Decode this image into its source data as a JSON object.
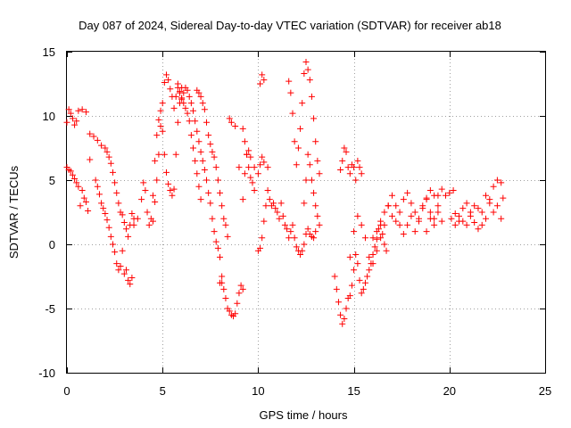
{
  "chart_data": {
    "type": "scatter",
    "title": "Day 087 of 2024, Sidereal Day-to-day VTEC variation (SDTVAR) for receiver ab18",
    "xlabel": "GPS time / hours",
    "ylabel": "SDTVAR / TECUs",
    "xlim": [
      0,
      25
    ],
    "ylim": [
      -10,
      15
    ],
    "x_ticks": [
      0,
      5,
      10,
      15,
      20,
      25
    ],
    "y_ticks": [
      -10,
      -5,
      0,
      5,
      10,
      15
    ],
    "x_tick_labels": [
      "0",
      "5",
      "10",
      "15",
      "20",
      "25"
    ],
    "y_tick_labels": [
      "-10",
      "-5",
      "0",
      "5",
      "10",
      "15"
    ],
    "grid": true,
    "legend": "none",
    "marker": "+",
    "color": "#ff0000",
    "series": [
      {
        "x": [
          0.0,
          0.1,
          0.2,
          0.3,
          0.4,
          0.5,
          0.6,
          0.8,
          1.0,
          1.2,
          1.4,
          1.6,
          1.8,
          2.0,
          2.1,
          2.2,
          2.3,
          2.4,
          2.5,
          2.6,
          2.7,
          2.8,
          2.9,
          3.0,
          3.1,
          3.2,
          3.3,
          3.4,
          3.5
        ],
        "y": [
          9.5,
          10.5,
          10.2,
          9.8,
          9.3,
          9.6,
          10.4,
          10.5,
          10.3,
          8.6,
          8.4,
          8.1,
          7.7,
          7.5,
          7.2,
          6.8,
          6.3,
          5.6,
          4.8,
          4.0,
          3.2,
          2.5,
          2.3,
          1.7,
          1.2,
          0.6,
          1.5,
          2.4,
          2.0
        ]
      },
      {
        "x": [
          0.0,
          0.1,
          0.2,
          0.3,
          0.4,
          0.5,
          0.6,
          0.7,
          0.8,
          0.9,
          1.0,
          1.1,
          1.2,
          1.5,
          1.6,
          1.7,
          1.8,
          1.9,
          2.0,
          2.1,
          2.2,
          2.3,
          2.4,
          2.5,
          2.6,
          2.7,
          2.8,
          2.9,
          3.0,
          3.1,
          3.2,
          3.3,
          3.4
        ],
        "y": [
          6.0,
          5.8,
          5.7,
          5.4,
          5.1,
          4.8,
          4.5,
          3.0,
          4.2,
          3.6,
          3.3,
          2.6,
          6.6,
          5.0,
          4.5,
          3.9,
          3.2,
          2.8,
          2.4,
          1.9,
          1.3,
          0.6,
          0.0,
          -0.6,
          -1.5,
          -2.0,
          -1.7,
          -0.5,
          -2.3,
          -2.0,
          -2.8,
          -3.1,
          -2.6
        ]
      },
      {
        "x": [
          3.5,
          3.7,
          3.9,
          4.0,
          4.1,
          4.2,
          4.3,
          4.4,
          4.5,
          4.6,
          4.7,
          4.8,
          4.9,
          5.0,
          5.1,
          5.2,
          5.3,
          5.4,
          5.5,
          5.6,
          5.7,
          5.8,
          5.9,
          6.0
        ],
        "y": [
          1.5,
          2.0,
          3.5,
          4.8,
          4.2,
          2.5,
          1.5,
          2.0,
          3.8,
          6.5,
          8.5,
          9.7,
          10.4,
          8.8,
          7.0,
          5.6,
          4.7,
          4.2,
          3.8,
          4.3,
          7.0,
          9.5,
          11.0,
          12.2
        ]
      },
      {
        "x": [
          4.5,
          4.6,
          4.7,
          4.8,
          4.9,
          5.0,
          5.1,
          5.2,
          5.3,
          5.4,
          5.5,
          5.6,
          5.7,
          5.8,
          5.9,
          6.0,
          6.1,
          6.2,
          6.3,
          6.4,
          6.5,
          6.6,
          6.7,
          6.8,
          6.9,
          7.0
        ],
        "y": [
          1.8,
          3.3,
          5.0,
          7.0,
          9.2,
          11.0,
          12.6,
          13.2,
          12.8,
          12.1,
          11.5,
          10.6,
          11.5,
          12.2,
          11.8,
          11.4,
          11.0,
          10.6,
          10.2,
          9.6,
          8.5,
          7.5,
          6.5,
          5.5,
          4.5,
          3.5
        ]
      },
      {
        "x": [
          5.8,
          5.9,
          6.0,
          6.1,
          6.2,
          6.3,
          6.4,
          6.5,
          6.6,
          6.7,
          6.8,
          6.9,
          7.0,
          7.1,
          7.2,
          7.3,
          7.4,
          7.5,
          7.6,
          7.7,
          7.8,
          7.9,
          8.0,
          8.1
        ],
        "y": [
          12.5,
          11.9,
          11.3,
          11.8,
          12.2,
          12.0,
          11.5,
          11.0,
          10.4,
          9.6,
          8.8,
          8.0,
          7.2,
          6.5,
          5.8,
          5.0,
          4.0,
          3.2,
          2.0,
          1.0,
          0.2,
          -0.3,
          -1.0,
          -3.0
        ]
      },
      {
        "x": [
          6.8,
          6.9,
          7.0,
          7.1,
          7.2,
          7.3,
          7.4,
          7.5,
          7.6,
          7.7,
          7.8,
          7.9,
          8.0,
          8.1,
          8.2,
          8.3,
          8.4
        ],
        "y": [
          12.0,
          11.8,
          11.5,
          11.0,
          10.5,
          9.5,
          8.5,
          7.8,
          7.2,
          6.8,
          6.0,
          5.0,
          4.0,
          3.0,
          2.0,
          1.5,
          0.6
        ]
      },
      {
        "x": [
          8.0,
          8.1,
          8.2,
          8.3,
          8.4,
          8.5,
          8.6,
          8.7,
          8.8,
          8.9,
          9.0,
          9.1,
          9.2
        ],
        "y": [
          -3.0,
          -2.5,
          -3.5,
          -4.2,
          -5.0,
          -5.2,
          -5.5,
          -5.6,
          -5.4,
          -4.6,
          -3.8,
          -3.2,
          -3.5
        ]
      },
      {
        "x": [
          8.5,
          8.6,
          8.8,
          9.0,
          9.2,
          9.3,
          9.4,
          9.5,
          9.6,
          9.8,
          10.0,
          10.1,
          10.2,
          10.3,
          10.5
        ],
        "y": [
          9.8,
          9.5,
          9.2,
          6.0,
          3.5,
          5.5,
          7.0,
          7.3,
          6.8,
          6.0,
          5.5,
          6.2,
          6.8,
          6.4,
          6.0
        ]
      },
      {
        "x": [
          9.2,
          9.3,
          9.4,
          9.5,
          9.6,
          9.7,
          9.8
        ],
        "y": [
          9.0,
          8.0,
          7.0,
          6.0,
          5.2,
          4.8,
          4.2
        ]
      },
      {
        "x": [
          10.0,
          10.1,
          10.2,
          10.3,
          10.4,
          10.5,
          10.6,
          10.7,
          10.8,
          10.9,
          11.0,
          11.1,
          11.2,
          11.3,
          11.4,
          11.5,
          11.6,
          11.7,
          11.8,
          11.9,
          12.0,
          12.1,
          12.2,
          12.3,
          12.4,
          12.5,
          12.6,
          12.7,
          12.8,
          12.9,
          13.0
        ],
        "y": [
          -0.5,
          -0.3,
          0.5,
          1.8,
          3.0,
          4.2,
          3.5,
          3.0,
          3.2,
          2.8,
          2.5,
          2.0,
          3.2,
          2.2,
          1.5,
          1.2,
          0.5,
          1.0,
          1.5,
          0.5,
          -0.2,
          -0.5,
          -0.8,
          -0.5,
          0.0,
          0.8,
          1.2,
          0.8,
          0.6,
          0.5,
          1.0
        ]
      },
      {
        "x": [
          10.1,
          10.2,
          10.3
        ],
        "y": [
          12.5,
          13.2,
          12.8
        ]
      },
      {
        "x": [
          11.6,
          11.7,
          11.8,
          11.9,
          12.0,
          12.1,
          12.2,
          12.3,
          12.4,
          12.5,
          12.6,
          12.7,
          12.8,
          12.9,
          13.0,
          13.1,
          13.2
        ],
        "y": [
          12.7,
          11.8,
          10.2,
          8.0,
          6.2,
          7.5,
          9.0,
          11.0,
          13.3,
          14.2,
          13.6,
          12.8,
          11.5,
          9.8,
          8.0,
          6.5,
          5.5
        ]
      },
      {
        "x": [
          12.4,
          12.5,
          12.6,
          12.7,
          12.8,
          12.9,
          13.0,
          13.1,
          13.2
        ],
        "y": [
          3.2,
          5.0,
          7.0,
          6.2,
          5.0,
          4.0,
          3.0,
          2.2,
          1.5
        ]
      },
      {
        "x": [
          14.0,
          14.1,
          14.2,
          14.3,
          14.4,
          14.5,
          14.6,
          14.7,
          14.8,
          14.9,
          15.0,
          15.1,
          15.2,
          15.3,
          15.4,
          15.5,
          15.6,
          15.7,
          15.8,
          15.9,
          16.0,
          16.1,
          16.2,
          16.3,
          16.4,
          16.5,
          16.6,
          16.7
        ],
        "y": [
          -2.5,
          -3.5,
          -4.5,
          -5.5,
          -6.2,
          -5.8,
          -5.0,
          -4.2,
          -4.0,
          -3.2,
          -2.0,
          -0.8,
          -1.5,
          -2.8,
          -3.8,
          -3.5,
          -3.0,
          -2.5,
          -2.0,
          -1.5,
          -0.8,
          -0.2,
          0.4,
          1.2,
          1.5,
          0.8,
          0.0,
          -0.5
        ]
      },
      {
        "x": [
          14.3,
          14.4,
          14.5,
          14.6,
          14.7,
          14.8,
          14.9,
          15.0,
          15.1,
          15.2,
          15.3,
          15.4
        ],
        "y": [
          5.8,
          6.5,
          7.5,
          7.2,
          6.0,
          5.5,
          6.2,
          6.0,
          5.0,
          6.5,
          6.0,
          5.5
        ]
      },
      {
        "x": [
          14.8,
          15.0,
          15.2,
          15.4,
          15.6,
          15.8,
          16.0,
          16.2,
          16.4,
          16.6,
          16.8,
          17.0,
          17.2,
          17.4,
          17.6,
          17.8,
          18.0,
          18.2,
          18.4,
          18.6,
          18.8,
          19.0,
          19.2,
          19.4,
          19.6
        ],
        "y": [
          -1.0,
          1.0,
          2.2,
          1.5,
          0.5,
          -1.0,
          0.5,
          1.0,
          1.8,
          2.5,
          3.0,
          2.2,
          1.8,
          2.5,
          3.5,
          4.0,
          3.2,
          2.5,
          2.0,
          2.8,
          3.5,
          4.2,
          3.8,
          2.5,
          1.8
        ]
      },
      {
        "x": [
          16.0,
          16.2,
          16.4,
          16.6,
          16.8,
          17.0,
          17.2,
          17.4,
          17.6,
          17.8,
          18.0,
          18.2,
          18.4,
          18.6,
          18.8,
          19.0,
          19.2,
          19.4
        ],
        "y": [
          -1.5,
          -0.5,
          0.5,
          1.5,
          3.0,
          3.8,
          3.0,
          1.5,
          0.8,
          1.5,
          2.2,
          1.0,
          1.8,
          3.0,
          3.6,
          2.5,
          2.0,
          3.0
        ]
      },
      {
        "x": [
          18.8,
          19.0,
          19.2,
          19.4,
          19.6,
          19.8,
          20.0,
          20.2
        ],
        "y": [
          1.0,
          2.0,
          1.5,
          3.8,
          4.3,
          3.8,
          4.0,
          4.2
        ]
      },
      {
        "x": [
          20.1,
          20.3,
          20.5,
          20.7,
          20.9,
          21.1,
          21.3,
          21.5,
          21.7,
          21.9,
          22.1,
          22.3,
          22.5,
          22.7,
          22.8
        ],
        "y": [
          2.0,
          2.4,
          2.2,
          1.8,
          1.5,
          2.2,
          3.0,
          2.8,
          1.5,
          2.0,
          3.5,
          4.5,
          5.0,
          4.8,
          3.6
        ]
      },
      {
        "x": [
          20.3,
          20.5,
          20.7,
          20.9,
          21.1,
          21.3,
          21.5,
          21.7,
          21.9,
          22.1,
          22.3,
          22.5,
          22.7
        ],
        "y": [
          1.5,
          1.8,
          2.8,
          3.2,
          2.5,
          1.7,
          1.2,
          2.5,
          3.8,
          3.2,
          2.5,
          3.0,
          2.0
        ]
      }
    ]
  }
}
